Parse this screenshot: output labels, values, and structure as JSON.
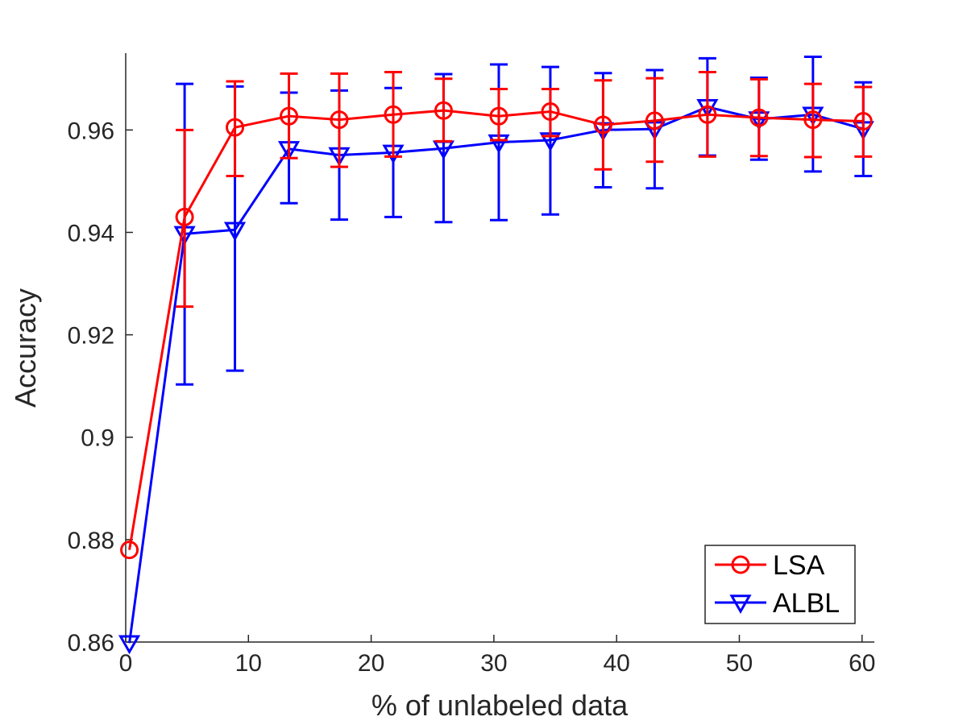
{
  "chart_data": {
    "type": "line",
    "title": "",
    "xlabel": "% of unlabeled data",
    "ylabel": "Accuracy",
    "xlim": [
      0,
      61
    ],
    "ylim": [
      0.86,
      0.975
    ],
    "xticks": [
      0,
      10,
      20,
      30,
      40,
      50,
      60
    ],
    "xtick_labels": [
      "0",
      "10",
      "20",
      "30",
      "40",
      "50",
      "60"
    ],
    "yticks": [
      0.86,
      0.88,
      0.9,
      0.92,
      0.94,
      0.96
    ],
    "ytick_labels": [
      "0.86",
      "0.88",
      "0.9",
      "0.92",
      "0.94",
      "0.96"
    ],
    "grid": false,
    "legend_position": "bottom-right",
    "series": [
      {
        "name": "LSA",
        "color": "#ff0000",
        "marker": "circle",
        "x": [
          0.3,
          4.8,
          8.9,
          13.3,
          17.4,
          21.8,
          25.9,
          30.4,
          34.6,
          38.9,
          43.1,
          47.4,
          51.6,
          56.0,
          60.1
        ],
        "y": [
          0.878,
          0.943,
          0.9605,
          0.9627,
          0.962,
          0.963,
          0.9638,
          0.9627,
          0.9636,
          0.961,
          0.9618,
          0.963,
          0.9624,
          0.962,
          0.9617
        ],
        "err_low": [
          null,
          0.9255,
          0.951,
          0.9545,
          0.9528,
          0.9548,
          0.9578,
          0.958,
          0.9588,
          0.9523,
          0.9538,
          0.9548,
          0.9549,
          0.9547,
          0.9548
        ],
        "err_high": [
          null,
          0.96,
          0.9695,
          0.971,
          0.971,
          0.9713,
          0.97,
          0.968,
          0.968,
          0.9697,
          0.9701,
          0.9713,
          0.9699,
          0.969,
          0.9684
        ]
      },
      {
        "name": "ALBL",
        "color": "#0000ff",
        "marker": "triangle-down",
        "x": [
          0.3,
          4.8,
          8.9,
          13.3,
          17.4,
          21.8,
          25.9,
          30.4,
          34.6,
          38.9,
          43.1,
          47.4,
          51.6,
          56.0,
          60.1
        ],
        "y": [
          0.8598,
          0.9397,
          0.9405,
          0.9563,
          0.9551,
          0.9556,
          0.9564,
          0.9576,
          0.958,
          0.96,
          0.9602,
          0.9645,
          0.9621,
          0.963,
          0.9602
        ],
        "err_low": [
          null,
          0.9103,
          0.913,
          0.9457,
          0.9425,
          0.943,
          0.942,
          0.9424,
          0.9435,
          0.9488,
          0.9486,
          0.955,
          0.9542,
          0.9519,
          0.951
        ],
        "err_high": [
          null,
          0.969,
          0.9685,
          0.9673,
          0.9677,
          0.9682,
          0.9709,
          0.9728,
          0.9723,
          0.9711,
          0.9717,
          0.974,
          0.9702,
          0.9743,
          0.9693
        ]
      }
    ]
  }
}
